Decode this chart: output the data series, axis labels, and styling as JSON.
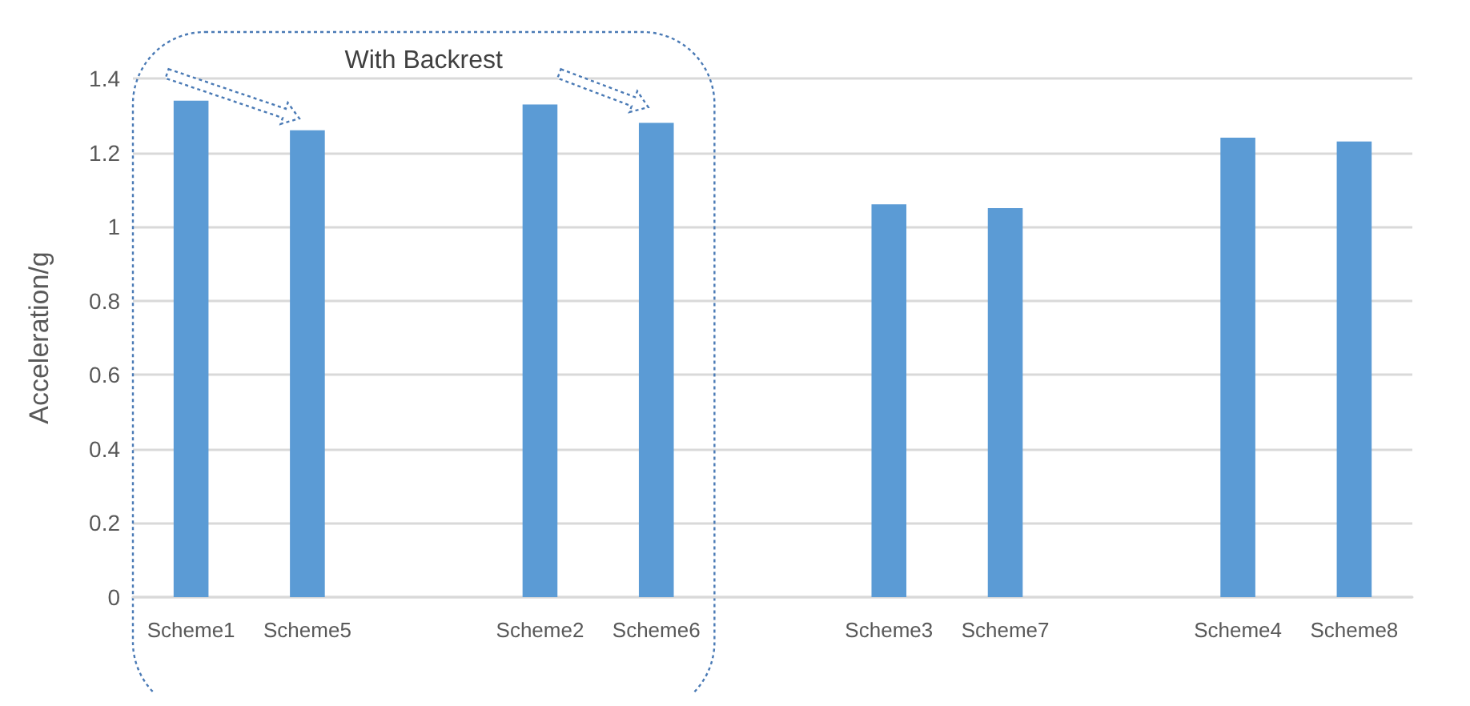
{
  "chart_data": {
    "type": "bar",
    "ylabel": "Acceleration/g",
    "annotations": [
      "With Backrest"
    ],
    "categories": [
      "Scheme1",
      "Scheme5",
      null,
      "Scheme2",
      "Scheme6",
      null,
      "Scheme3",
      "Scheme7",
      null,
      "Scheme4",
      "Scheme8"
    ],
    "values": [
      1.34,
      1.26,
      null,
      1.33,
      1.28,
      null,
      1.06,
      1.05,
      null,
      1.24,
      1.23
    ],
    "color": "#5b9bd5",
    "ylim": [
      0,
      1.4
    ],
    "yticks": [
      0,
      0.2,
      0.4,
      0.6,
      0.8,
      1,
      1.2,
      1.4
    ],
    "grid": "y"
  }
}
